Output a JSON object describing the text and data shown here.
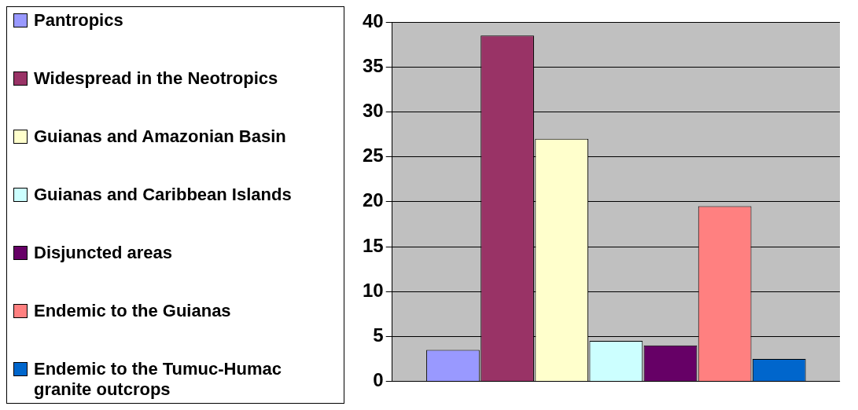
{
  "chart_data": {
    "type": "bar",
    "categories": [
      null
    ],
    "series": [
      {
        "name": "Pantropics",
        "color": "#9999ff",
        "values": [
          3.5
        ]
      },
      {
        "name": "Widespread in the Neotropics",
        "color": "#993366",
        "values": [
          38.5
        ]
      },
      {
        "name": "Guianas and Amazonian Basin",
        "color": "#ffffcc",
        "values": [
          27
        ]
      },
      {
        "name": "Guianas and Caribbean Islands",
        "color": "#ccffff",
        "values": [
          4.5
        ]
      },
      {
        "name": "Disjuncted areas",
        "color": "#660066",
        "values": [
          4
        ]
      },
      {
        "name": "Endemic to the Guianas",
        "color": "#ff8080",
        "values": [
          19.5
        ]
      },
      {
        "name": "Endemic to the Tumuc-Humac granite outcrops",
        "color": "#0066cc",
        "values": [
          2.5
        ]
      }
    ],
    "ylim": [
      0,
      40
    ],
    "yticks": [
      0,
      5,
      10,
      15,
      20,
      25,
      30,
      35,
      40
    ],
    "grid": "y",
    "legend": "left"
  }
}
